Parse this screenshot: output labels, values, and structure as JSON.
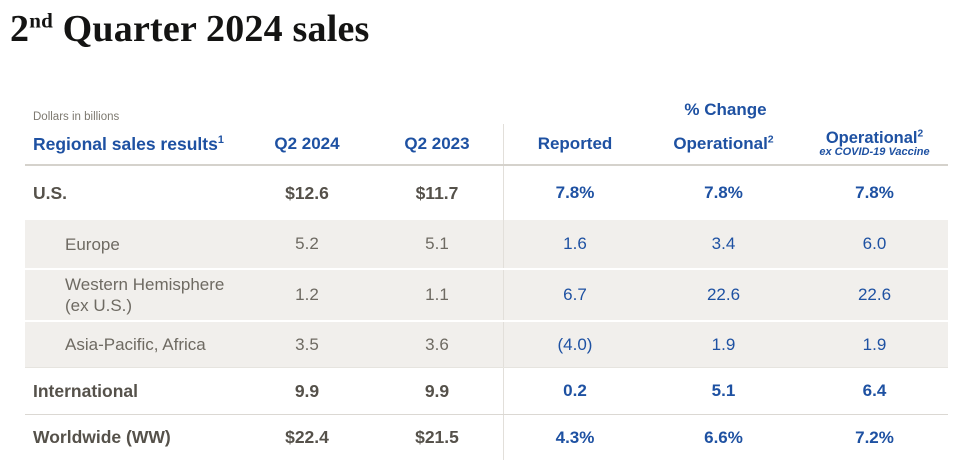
{
  "title": {
    "prefix": "2",
    "superscript": "nd",
    "rest": " Quarter 2024 sales"
  },
  "table": {
    "note": "Dollars in billions",
    "pct_change_header": "% Change",
    "columns": {
      "region": {
        "text": "Regional sales results",
        "sup": "1"
      },
      "q2_2024": "Q2 2024",
      "q2_2023": "Q2 2023",
      "reported": "Reported",
      "operational": {
        "text": "Operational",
        "sup": "2"
      },
      "operational_ex": {
        "text": "Operational",
        "sup": "2",
        "subline": "ex COVID-19 Vaccine"
      }
    },
    "rows": [
      {
        "label": "U.S.",
        "q2_2024": "$12.6",
        "q2_2023": "$11.7",
        "reported": "7.8%",
        "operational": "7.8%",
        "operational_ex": "7.8%"
      },
      {
        "label": "Europe",
        "q2_2024": "5.2",
        "q2_2023": "5.1",
        "reported": "1.6",
        "operational": "3.4",
        "operational_ex": "6.0"
      },
      {
        "label": "Western Hemisphere",
        "label_line2": "(ex U.S.)",
        "q2_2024": "1.2",
        "q2_2023": "1.1",
        "reported": "6.7",
        "operational": "22.6",
        "operational_ex": "22.6"
      },
      {
        "label": "Asia-Pacific, Africa",
        "q2_2024": "3.5",
        "q2_2023": "3.6",
        "reported": "(4.0)",
        "operational": "1.9",
        "operational_ex": "1.9"
      },
      {
        "label": "International",
        "q2_2024": "9.9",
        "q2_2023": "9.9",
        "reported": "0.2",
        "operational": "5.1",
        "operational_ex": "6.4"
      },
      {
        "label": "Worldwide (WW)",
        "q2_2024": "$22.4",
        "q2_2023": "$21.5",
        "reported": "4.3%",
        "operational": "6.6%",
        "operational_ex": "7.2%"
      }
    ]
  },
  "colors": {
    "accent_blue": "#1e51a2",
    "dark_text": "#55514a",
    "muted_text": "#6e6a62",
    "note_text": "#7d7970",
    "shaded_row_bg": "#f1efec",
    "divider": "#e2dfda",
    "header_underline": "#d5d2cc"
  },
  "chart_data": {
    "type": "table",
    "title": "2nd Quarter 2024 sales",
    "units": "Dollars in billions",
    "columns": [
      "Regional sales results",
      "Q2 2024",
      "Q2 2023",
      "% Change Reported",
      "% Change Operational",
      "% Change Operational ex COVID-19 Vaccine"
    ],
    "rows": [
      [
        "U.S.",
        12.6,
        11.7,
        7.8,
        7.8,
        7.8
      ],
      [
        "Europe",
        5.2,
        5.1,
        1.6,
        3.4,
        6.0
      ],
      [
        "Western Hemisphere (ex U.S.)",
        1.2,
        1.1,
        6.7,
        22.6,
        22.6
      ],
      [
        "Asia-Pacific, Africa",
        3.5,
        3.6,
        -4.0,
        1.9,
        1.9
      ],
      [
        "International",
        9.9,
        9.9,
        0.2,
        5.1,
        6.4
      ],
      [
        "Worldwide (WW)",
        22.4,
        21.5,
        4.3,
        6.6,
        7.2
      ]
    ]
  }
}
